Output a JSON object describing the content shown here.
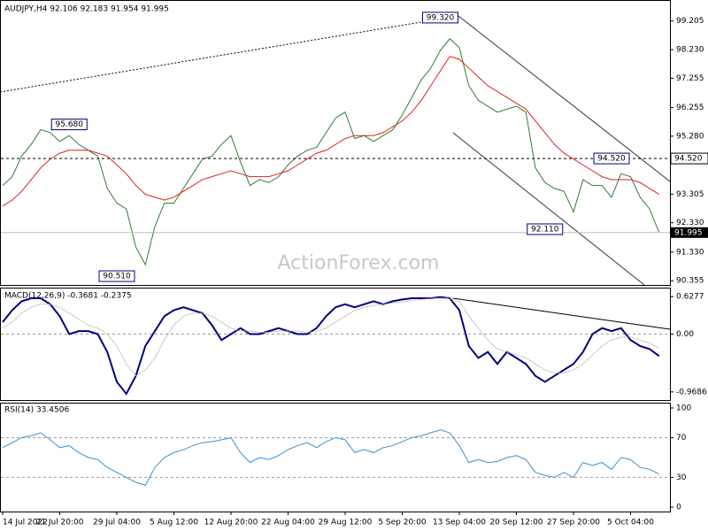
{
  "chart_data": [
    {
      "type": "line",
      "title": "AUDJPY,H4 92.106 92.183 91.954 91.995",
      "watermark": "ActionForex.com",
      "categories": [
        "14 Jul 2022",
        null,
        null,
        null,
        null,
        null,
        "21 Jul 20:00",
        null,
        null,
        null,
        null,
        null,
        "29 Jul 04:00",
        null,
        null,
        null,
        null,
        null,
        "5 Aug 12:00",
        null,
        null,
        null,
        null,
        null,
        "12 Aug 20:00",
        null,
        null,
        null,
        null,
        null,
        "22 Aug 04:00",
        null,
        null,
        null,
        null,
        null,
        "29 Aug 12:00",
        null,
        null,
        null,
        null,
        null,
        "5 Sep 20:00",
        null,
        null,
        null,
        null,
        null,
        "13 Sep 04:00",
        null,
        null,
        null,
        null,
        null,
        "20 Sep 12:00",
        null,
        null,
        null,
        null,
        null,
        "27 Sep 20:00",
        null,
        null,
        null,
        null,
        null,
        "5 Oct 04:00",
        null,
        null,
        null
      ],
      "series": [
        {
          "color": "#2e7d32",
          "values": [
            93.6,
            93.9,
            94.6,
            95.0,
            95.5,
            95.4,
            95.1,
            95.3,
            95.0,
            94.8,
            94.6,
            93.5,
            93.0,
            92.8,
            91.5,
            90.9,
            92.2,
            93.0,
            93.0,
            93.5,
            94.0,
            94.5,
            94.6,
            95.0,
            95.3,
            94.4,
            93.6,
            93.8,
            93.7,
            93.9,
            94.3,
            94.6,
            94.8,
            94.9,
            95.4,
            95.9,
            96.1,
            95.2,
            95.3,
            95.1,
            95.3,
            95.5,
            96.0,
            96.6,
            97.2,
            97.6,
            98.2,
            98.6,
            98.3,
            97.0,
            96.5,
            96.3,
            96.1,
            96.2,
            96.3,
            96.1,
            94.2,
            93.7,
            93.5,
            93.4,
            92.7,
            93.8,
            93.6,
            93.6,
            93.2,
            94.0,
            93.9,
            93.2,
            92.8,
            91.995
          ]
        },
        {
          "color": "#e02020",
          "values": [
            92.9,
            93.1,
            93.4,
            93.8,
            94.2,
            94.5,
            94.7,
            94.8,
            94.8,
            94.8,
            94.7,
            94.6,
            94.3,
            94.0,
            93.6,
            93.3,
            93.2,
            93.1,
            93.2,
            93.4,
            93.6,
            93.8,
            93.9,
            94.0,
            94.1,
            94.0,
            93.9,
            93.9,
            93.9,
            94.0,
            94.1,
            94.3,
            94.5,
            94.7,
            94.8,
            95.0,
            95.2,
            95.3,
            95.3,
            95.3,
            95.4,
            95.6,
            95.8,
            96.1,
            96.5,
            97.0,
            97.5,
            98.0,
            97.9,
            97.6,
            97.3,
            97.0,
            96.8,
            96.6,
            96.4,
            96.2,
            95.8,
            95.4,
            95.0,
            94.7,
            94.5,
            94.3,
            94.1,
            93.9,
            93.8,
            93.8,
            93.8,
            93.7,
            93.5,
            93.3
          ]
        }
      ],
      "ylim": [
        90.27,
        99.86
      ],
      "yticks": [
        99.205,
        {
          "value": 98.23,
          "label": "98.230"
        },
        97.255,
        96.255,
        {
          "value": 95.28,
          "label": "95.280"
        },
        93.305,
        {
          "value": 92.33,
          "label": "92.330"
        },
        {
          "value": 91.33,
          "label": "91.330"
        },
        90.355
      ],
      "annotations": [
        {
          "value": 99.32,
          "label": "99.320",
          "x": 46
        },
        {
          "value": 95.68,
          "label": "95.680",
          "x": 7
        },
        {
          "value": 90.51,
          "label": "90.510",
          "x": 12
        },
        {
          "value": 94.52,
          "label": "94.520",
          "x": 64
        },
        {
          "value": 92.11,
          "label": "92.110",
          "x": 57
        }
      ],
      "level": {
        "value": 94.52,
        "label": "94.520"
      },
      "current": 91.995
    },
    {
      "type": "line",
      "title": "MACD(12,26,9) -0.3681 -0.2375",
      "series": [
        {
          "color": "#000080",
          "values": [
            0.2,
            0.4,
            0.55,
            0.6,
            0.6,
            0.5,
            0.3,
            0.0,
            0.05,
            0.05,
            0.0,
            -0.3,
            -0.8,
            -1.0,
            -0.7,
            -0.2,
            0.05,
            0.3,
            0.4,
            0.45,
            0.4,
            0.35,
            0.15,
            -0.1,
            0.0,
            0.1,
            0.0,
            0.0,
            0.05,
            0.1,
            0.05,
            0.0,
            0.0,
            0.1,
            0.3,
            0.45,
            0.5,
            0.45,
            0.5,
            0.55,
            0.5,
            0.55,
            0.58,
            0.6,
            0.6,
            0.6,
            0.62,
            0.6,
            0.4,
            -0.2,
            -0.4,
            -0.3,
            -0.5,
            -0.3,
            -0.4,
            -0.5,
            -0.7,
            -0.8,
            -0.7,
            -0.6,
            -0.5,
            -0.3,
            0.0,
            0.1,
            0.05,
            0.1,
            -0.1,
            -0.2,
            -0.25,
            -0.3681
          ]
        },
        {
          "color": "#b0b0b0",
          "values": [
            0.1,
            0.2,
            0.35,
            0.45,
            0.5,
            0.5,
            0.45,
            0.35,
            0.25,
            0.15,
            0.1,
            0.0,
            -0.2,
            -0.5,
            -0.7,
            -0.6,
            -0.4,
            -0.1,
            0.15,
            0.3,
            0.35,
            0.35,
            0.3,
            0.2,
            0.1,
            0.05,
            0.05,
            0.03,
            0.03,
            0.05,
            0.05,
            0.05,
            0.03,
            0.05,
            0.1,
            0.2,
            0.3,
            0.4,
            0.45,
            0.48,
            0.5,
            0.52,
            0.54,
            0.56,
            0.58,
            0.6,
            0.6,
            0.6,
            0.55,
            0.3,
            0.1,
            -0.1,
            -0.25,
            -0.3,
            -0.35,
            -0.4,
            -0.5,
            -0.6,
            -0.65,
            -0.65,
            -0.6,
            -0.5,
            -0.35,
            -0.2,
            -0.1,
            -0.05,
            -0.05,
            -0.1,
            -0.15,
            -0.2375
          ]
        }
      ],
      "ylim": [
        -1.075,
        0.734
      ],
      "yticks": [
        0.6277,
        {
          "value": 0,
          "label": "0.00"
        },
        -0.9686
      ]
    },
    {
      "type": "line",
      "title": "RSI(14) 33.4506",
      "series": [
        {
          "color": "#3a8fd8",
          "values": [
            60,
            65,
            70,
            72,
            75,
            68,
            60,
            62,
            55,
            50,
            48,
            40,
            35,
            30,
            25,
            22,
            40,
            50,
            55,
            58,
            62,
            65,
            66,
            68,
            70,
            55,
            45,
            50,
            48,
            52,
            58,
            62,
            65,
            60,
            66,
            70,
            68,
            55,
            58,
            55,
            60,
            62,
            66,
            70,
            72,
            75,
            78,
            75,
            62,
            45,
            48,
            45,
            46,
            50,
            52,
            48,
            35,
            32,
            30,
            35,
            30,
            45,
            42,
            45,
            38,
            50,
            48,
            40,
            38,
            33.4506
          ]
        }
      ],
      "ylim": [
        0,
        100
      ],
      "yticks": [
        100,
        70,
        30,
        0
      ]
    }
  ]
}
